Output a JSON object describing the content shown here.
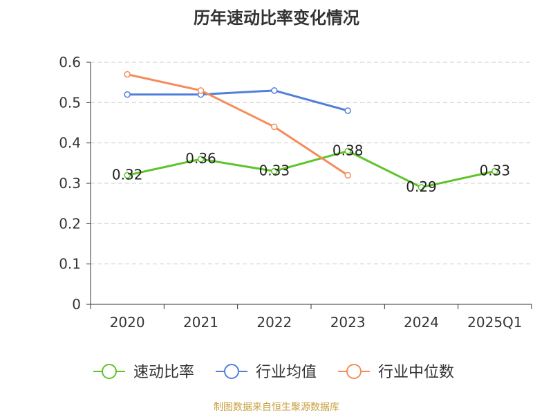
{
  "chart_data": {
    "type": "line",
    "title": "历年速动比率变化情况",
    "categories": [
      "2020",
      "2021",
      "2022",
      "2023",
      "2024",
      "2025Q1"
    ],
    "ylim": [
      0,
      0.6
    ],
    "yticks": [
      "0",
      "0.1",
      "0.2",
      "0.3",
      "0.4",
      "0.5",
      "0.6"
    ],
    "grid": true,
    "legend_position": "bottom",
    "series": [
      {
        "name": "速动比率",
        "color": "#5fc32a",
        "labeled": true,
        "values": [
          0.32,
          0.36,
          0.33,
          0.38,
          0.29,
          0.33
        ],
        "labels": [
          "0.32",
          "0.36",
          "0.33",
          "0.38",
          "0.29",
          "0.33"
        ]
      },
      {
        "name": "行业均值",
        "color": "#4f7fdb",
        "labeled": false,
        "values": [
          0.52,
          0.52,
          0.53,
          0.48,
          null,
          null
        ]
      },
      {
        "name": "行业中位数",
        "color": "#f58c5a",
        "labeled": false,
        "values": [
          0.57,
          0.53,
          0.44,
          0.32,
          null,
          null
        ]
      }
    ]
  },
  "source_note": "制图数据来自恒生聚源数据库"
}
